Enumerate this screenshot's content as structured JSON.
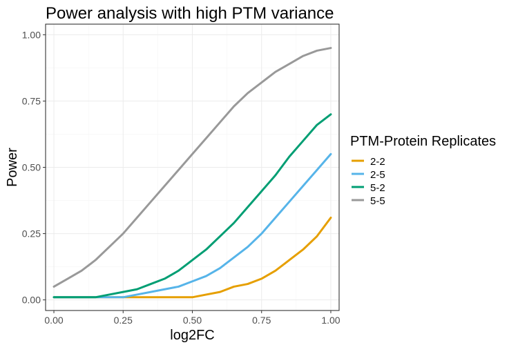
{
  "chart_data": {
    "type": "line",
    "title": "Power analysis with high PTM variance",
    "xlabel": "log2FC",
    "ylabel": "Power",
    "xlim": [
      -0.03,
      1.03
    ],
    "ylim": [
      -0.04,
      1.04
    ],
    "xticks": [
      0.0,
      0.25,
      0.5,
      0.75,
      1.0
    ],
    "xtick_labels": [
      "0.00",
      "0.25",
      "0.50",
      "0.75",
      "1.00"
    ],
    "yticks": [
      0.0,
      0.25,
      0.5,
      0.75,
      1.0
    ],
    "ytick_labels": [
      "0.00",
      "0.25",
      "0.50",
      "0.75",
      "1.00"
    ],
    "grid": true,
    "legend": {
      "title": "PTM-Protein Replicates",
      "position": "right"
    },
    "x": [
      0.0,
      0.05,
      0.1,
      0.15,
      0.2,
      0.25,
      0.3,
      0.35,
      0.4,
      0.45,
      0.5,
      0.55,
      0.6,
      0.65,
      0.7,
      0.75,
      0.8,
      0.85,
      0.9,
      0.95,
      1.0
    ],
    "series": [
      {
        "name": "2-2",
        "color": "#E69F00",
        "values": [
          0.01,
          0.01,
          0.01,
          0.01,
          0.01,
          0.01,
          0.01,
          0.01,
          0.01,
          0.01,
          0.01,
          0.02,
          0.03,
          0.05,
          0.06,
          0.08,
          0.11,
          0.15,
          0.19,
          0.24,
          0.31
        ]
      },
      {
        "name": "2-5",
        "color": "#56B4E9",
        "values": [
          0.01,
          0.01,
          0.01,
          0.01,
          0.01,
          0.01,
          0.02,
          0.03,
          0.04,
          0.05,
          0.07,
          0.09,
          0.12,
          0.16,
          0.2,
          0.25,
          0.31,
          0.37,
          0.43,
          0.49,
          0.55
        ]
      },
      {
        "name": "5-2",
        "color": "#009E73",
        "values": [
          0.01,
          0.01,
          0.01,
          0.01,
          0.02,
          0.03,
          0.04,
          0.06,
          0.08,
          0.11,
          0.15,
          0.19,
          0.24,
          0.29,
          0.35,
          0.41,
          0.47,
          0.54,
          0.6,
          0.66,
          0.7
        ]
      },
      {
        "name": "5-5",
        "color": "#999999",
        "values": [
          0.05,
          0.08,
          0.11,
          0.15,
          0.2,
          0.25,
          0.31,
          0.37,
          0.43,
          0.49,
          0.55,
          0.61,
          0.67,
          0.73,
          0.78,
          0.82,
          0.86,
          0.89,
          0.92,
          0.94,
          0.95
        ]
      }
    ]
  }
}
